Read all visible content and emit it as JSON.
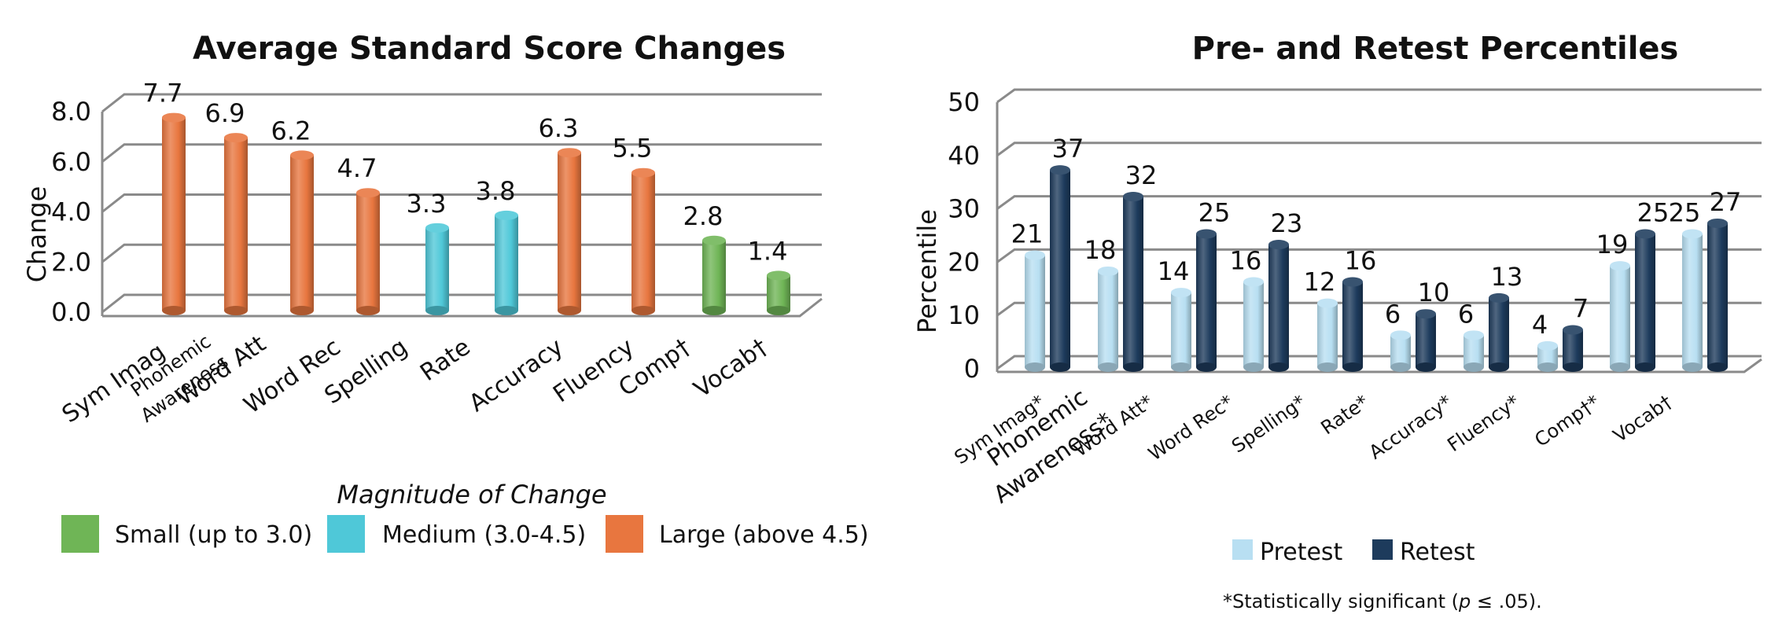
{
  "chart_data": [
    {
      "type": "bar",
      "title": "Average Standard Score Changes",
      "xlabel": "",
      "ylabel": "Change",
      "ylim": [
        0,
        8
      ],
      "yticks": [
        "0.0",
        "2.0",
        "4.0",
        "6.0",
        "8.0"
      ],
      "categories": [
        "Sym Imag",
        "Phonemic Awareness",
        "Word Att",
        "Word Rec",
        "Spelling",
        "Rate",
        "Accuracy",
        "Fluency",
        "Comp†",
        "Vocab†"
      ],
      "values": [
        7.7,
        6.9,
        6.2,
        4.7,
        3.3,
        3.8,
        6.3,
        5.5,
        2.8,
        1.4
      ],
      "value_labels": [
        "7.7",
        "6.9",
        "6.2",
        "4.7",
        "3.3",
        "3.8",
        "6.3",
        "5.5",
        "2.8",
        "1.4"
      ],
      "magnitudes": [
        "large",
        "large",
        "large",
        "large",
        "medium",
        "medium",
        "large",
        "large",
        "small",
        "small"
      ],
      "colors": {
        "small": "#6fb556",
        "medium": "#4fc8d8",
        "large": "#e8763f"
      },
      "grid": true,
      "legend": {
        "title": "Magnitude of Change",
        "placement": "bottom",
        "items": [
          {
            "key": "small",
            "label": "Small (up to 3.0)"
          },
          {
            "key": "medium",
            "label": "Medium (3.0-4.5)"
          },
          {
            "key": "large",
            "label": "Large (above 4.5)"
          }
        ]
      }
    },
    {
      "type": "bar",
      "title": "Pre- and Retest Percentiles",
      "xlabel": "",
      "ylabel": "Percentile",
      "ylim": [
        0,
        50
      ],
      "yticks": [
        "0",
        "10",
        "20",
        "30",
        "40",
        "50"
      ],
      "categories": [
        "Sym Imag*",
        "Phonemic Awareness*",
        "Word Att*",
        "Word Rec*",
        "Spelling*",
        "Rate*",
        "Accuracy*",
        "Fluency*",
        "Comp†*",
        "Vocab†"
      ],
      "series": [
        {
          "name": "Pretest",
          "color": "#b8dff2",
          "values": [
            21,
            18,
            14,
            16,
            12,
            6,
            6,
            4,
            19,
            25
          ],
          "labels": [
            "21",
            "18",
            "14",
            "16",
            "12",
            "6",
            "6",
            "4",
            "19",
            "25"
          ]
        },
        {
          "name": "Retest",
          "color": "#1d3b5c",
          "values": [
            37,
            32,
            25,
            23,
            16,
            10,
            13,
            7,
            25,
            27
          ],
          "labels": [
            "37",
            "32",
            "25",
            "23",
            "16",
            "10",
            "13",
            "7",
            "25",
            "27"
          ]
        }
      ],
      "grid": true,
      "legend": {
        "placement": "bottom"
      },
      "footnote": {
        "prefix": "*Statistically significant (",
        "italic": "p",
        "suffix": " ≤ .05)."
      }
    }
  ]
}
